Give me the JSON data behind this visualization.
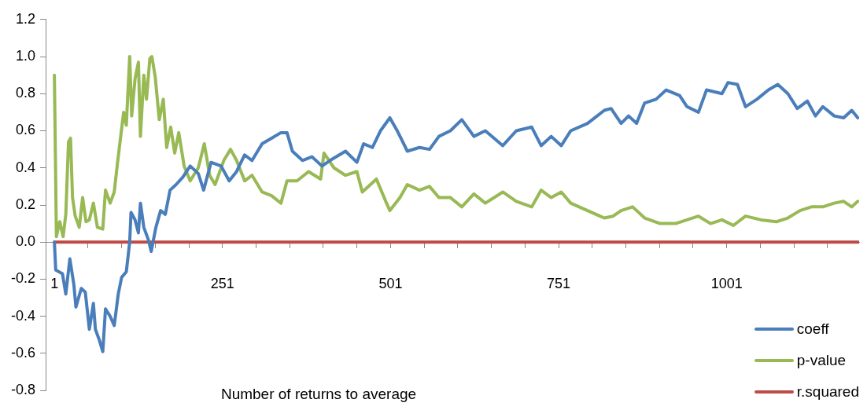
{
  "chart_data": {
    "type": "line",
    "xlabel": "Number of returns to average",
    "xlim": [
      -12,
      1198
    ],
    "ylim": [
      -0.8,
      1.2
    ],
    "xticks": [
      1,
      {
        "value": 51,
        "label": null
      },
      {
        "value": 101,
        "label": null
      },
      {
        "value": 151,
        "label": null
      },
      {
        "value": 201,
        "label": null
      },
      251,
      {
        "value": 301,
        "label": null
      },
      {
        "value": 351,
        "label": null
      },
      {
        "value": 401,
        "label": null
      },
      {
        "value": 451,
        "label": null
      },
      501,
      {
        "value": 551,
        "label": null
      },
      {
        "value": 601,
        "label": null
      },
      {
        "value": 651,
        "label": null
      },
      {
        "value": 701,
        "label": null
      },
      751,
      {
        "value": 801,
        "label": null
      },
      {
        "value": 851,
        "label": null
      },
      {
        "value": 901,
        "label": null
      },
      {
        "value": 951,
        "label": null
      },
      1001,
      {
        "value": 1051,
        "label": null
      },
      {
        "value": 1101,
        "label": null
      },
      {
        "value": 1151,
        "label": null
      }
    ],
    "yticks": [
      {
        "value": -0.8,
        "label": "-0.8"
      },
      {
        "value": -0.6,
        "label": "-0.6"
      },
      {
        "value": -0.4,
        "label": "-0.4"
      },
      {
        "value": -0.2,
        "label": "-0.2"
      },
      {
        "value": 0,
        "label": "0.0"
      },
      {
        "value": 0.2,
        "label": "0.2"
      },
      {
        "value": 0.4,
        "label": "0.4"
      },
      {
        "value": 0.6,
        "label": "0.6"
      },
      {
        "value": 0.8,
        "label": "0.8"
      },
      {
        "value": 1,
        "label": "1.0"
      },
      {
        "value": 1.2,
        "label": "1.2"
      }
    ],
    "grid": false,
    "legend": "bottom right",
    "marker": "none",
    "line_style": "solid",
    "series": [
      {
        "name": "coeff",
        "color": "#4a7ebb",
        "x": [
          1,
          3,
          13,
          18,
          24,
          30,
          33,
          41,
          47,
          53,
          59,
          62,
          68,
          73,
          77,
          84,
          90,
          96,
          101,
          108,
          113,
          115,
          121,
          126,
          129,
          134,
          141,
          145,
          152,
          159,
          166,
          173,
          182,
          192,
          203,
          215,
          223,
          234,
          249,
          261,
          272,
          284,
          295,
          310,
          324,
          338,
          347,
          355,
          370,
          384,
          399,
          411,
          434,
          451,
          461,
          474,
          486,
          500,
          511,
          526,
          544,
          559,
          573,
          590,
          607,
          625,
          642,
          668,
          688,
          711,
          725,
          740,
          755,
          769,
          794,
          819,
          829,
          844,
          855,
          867,
          879,
          896,
          911,
          931,
          942,
          959,
          971,
          994,
          1003,
          1017,
          1029,
          1046,
          1063,
          1077,
          1092,
          1106,
          1121,
          1133,
          1144,
          1161,
          1175,
          1187,
          1196
        ],
        "values": [
          0,
          -0.15,
          -0.17,
          -0.28,
          -0.09,
          -0.23,
          -0.35,
          -0.25,
          -0.27,
          -0.47,
          -0.33,
          -0.47,
          -0.53,
          -0.59,
          -0.36,
          -0.4,
          -0.45,
          -0.28,
          -0.19,
          -0.16,
          0,
          0.16,
          0.12,
          0.05,
          0.21,
          0.08,
          0.01,
          -0.05,
          0.08,
          0.17,
          0.15,
          0.28,
          0.31,
          0.35,
          0.41,
          0.37,
          0.28,
          0.43,
          0.41,
          0.33,
          0.38,
          0.47,
          0.44,
          0.53,
          0.56,
          0.59,
          0.59,
          0.49,
          0.44,
          0.46,
          0.41,
          0.44,
          0.49,
          0.43,
          0.53,
          0.51,
          0.6,
          0.67,
          0.6,
          0.49,
          0.51,
          0.5,
          0.57,
          0.6,
          0.66,
          0.57,
          0.6,
          0.52,
          0.6,
          0.62,
          0.52,
          0.57,
          0.52,
          0.6,
          0.64,
          0.71,
          0.72,
          0.64,
          0.68,
          0.64,
          0.75,
          0.77,
          0.82,
          0.79,
          0.73,
          0.7,
          0.82,
          0.8,
          0.86,
          0.85,
          0.73,
          0.77,
          0.82,
          0.85,
          0.8,
          0.72,
          0.76,
          0.68,
          0.73,
          0.68,
          0.67,
          0.71,
          0.67
        ]
      },
      {
        "name": "p-value",
        "color": "#98b954",
        "x": [
          1,
          4,
          9,
          14,
          18,
          22,
          25,
          28,
          32,
          38,
          43,
          48,
          53,
          59,
          65,
          73,
          77,
          84,
          90,
          95,
          99,
          104,
          108,
          113,
          116,
          121,
          126,
          129,
          134,
          138,
          143,
          146,
          151,
          157,
          163,
          168,
          174,
          180,
          186,
          194,
          203,
          215,
          224,
          232,
          240,
          253,
          263,
          272,
          284,
          295,
          310,
          324,
          338,
          347,
          362,
          379,
          397,
          402,
          417,
          434,
          451,
          459,
          480,
          495,
          500,
          515,
          526,
          544,
          559,
          573,
          590,
          607,
          625,
          642,
          668,
          688,
          711,
          725,
          740,
          755,
          769,
          794,
          819,
          832,
          844,
          861,
          879,
          902,
          925,
          942,
          959,
          977,
          994,
          1011,
          1029,
          1052,
          1075,
          1092,
          1110,
          1127,
          1144,
          1161,
          1175,
          1187,
          1196
        ],
        "values": [
          0.9,
          0.03,
          0.11,
          0.03,
          0.15,
          0.54,
          0.56,
          0.24,
          0.14,
          0.08,
          0.24,
          0.11,
          0.12,
          0.21,
          0.08,
          0.07,
          0.28,
          0.21,
          0.27,
          0.43,
          0.55,
          0.7,
          0.63,
          1,
          0.68,
          0.88,
          0.97,
          0.57,
          0.9,
          0.77,
          0.99,
          1,
          0.89,
          0.66,
          0.77,
          0.51,
          0.62,
          0.48,
          0.59,
          0.41,
          0.33,
          0.4,
          0.53,
          0.36,
          0.31,
          0.44,
          0.5,
          0.44,
          0.33,
          0.36,
          0.27,
          0.25,
          0.21,
          0.33,
          0.33,
          0.38,
          0.34,
          0.48,
          0.4,
          0.36,
          0.38,
          0.27,
          0.34,
          0.21,
          0.17,
          0.24,
          0.31,
          0.28,
          0.3,
          0.24,
          0.24,
          0.19,
          0.26,
          0.21,
          0.27,
          0.22,
          0.19,
          0.28,
          0.24,
          0.27,
          0.21,
          0.17,
          0.13,
          0.14,
          0.17,
          0.19,
          0.13,
          0.1,
          0.1,
          0.12,
          0.14,
          0.1,
          0.12,
          0.09,
          0.14,
          0.12,
          0.11,
          0.13,
          0.17,
          0.19,
          0.19,
          0.21,
          0.22,
          0.19,
          0.22
        ]
      },
      {
        "name": "r.squared",
        "color": "#be4b48",
        "x": [
          1,
          1198
        ],
        "values": [
          0,
          0
        ]
      }
    ]
  }
}
